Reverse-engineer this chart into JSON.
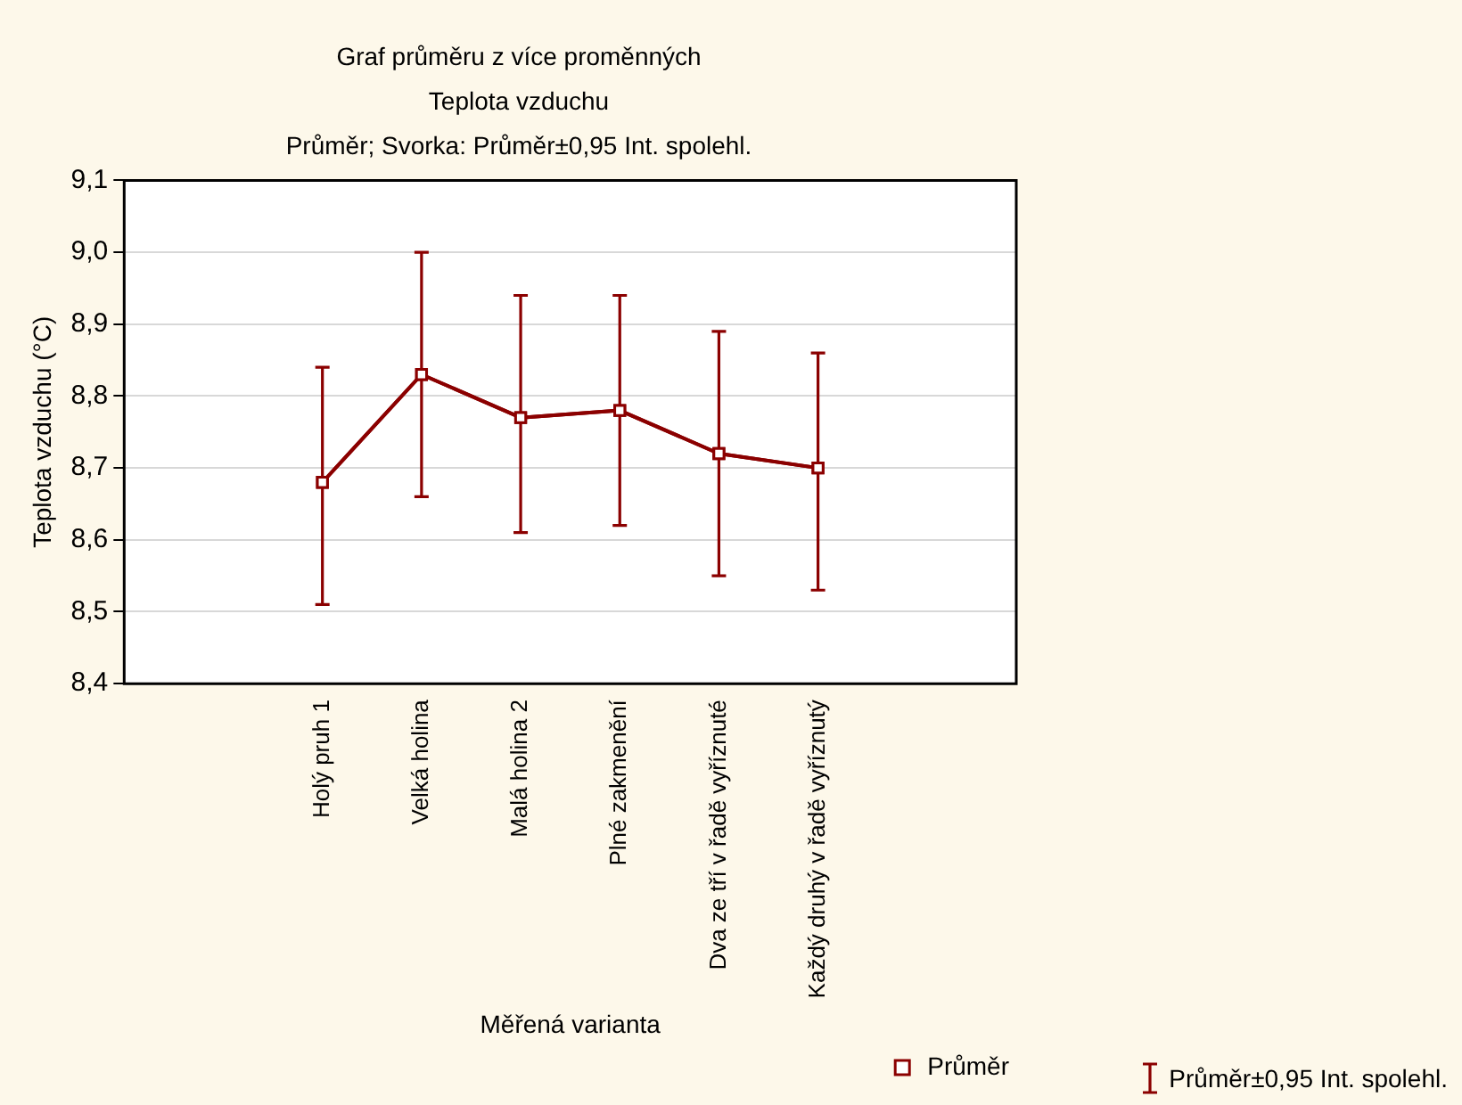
{
  "chart_data": {
    "type": "line",
    "title": "Graf průměru z více proměnných",
    "subtitle": "Teplota vzduchu\nPrůměr; Svorka: Průměr±0,95 Int. spolehl.",
    "xlabel": "Měřená varianta",
    "ylabel": "Teplota vzduchu (°C)",
    "categories": [
      null,
      null,
      "Holý pruh 1",
      "Velká holina",
      "Malá holina 2",
      "Plné zakmenění",
      "Dva ze tří v řadě vyříznuté",
      "Každý druhý v řadě vyříznutý",
      null,
      null
    ],
    "series": [
      {
        "name": "Průměr",
        "color": "#8b0000",
        "values": [
          null,
          null,
          8.68,
          8.83,
          8.77,
          8.78,
          8.72,
          8.7,
          null,
          null
        ],
        "errors": [
          null,
          null,
          [
            8.51,
            8.84
          ],
          [
            8.66,
            9.0
          ],
          [
            8.61,
            8.94
          ],
          [
            8.62,
            8.94
          ],
          [
            8.55,
            8.89
          ],
          [
            8.53,
            8.86
          ],
          null,
          null
        ]
      }
    ],
    "ylim": [
      8.4,
      9.1
    ],
    "yticks": [
      {
        "value": 8.4,
        "label": "8,4"
      },
      {
        "value": 8.5,
        "label": "8,5"
      },
      {
        "value": 8.6,
        "label": "8,6"
      },
      {
        "value": 8.7,
        "label": "8,7"
      },
      {
        "value": 8.8,
        "label": "8,8"
      },
      {
        "value": 8.9,
        "label": "8,9"
      },
      {
        "value": 9.0,
        "label": "9,0"
      },
      {
        "value": 9.1,
        "label": "9,1"
      }
    ],
    "grid": "y",
    "legend": "bottom right",
    "marker": "square",
    "line_style": "solid",
    "annotations": [
      "Průměr±0,95 Int. spolehl."
    ]
  }
}
